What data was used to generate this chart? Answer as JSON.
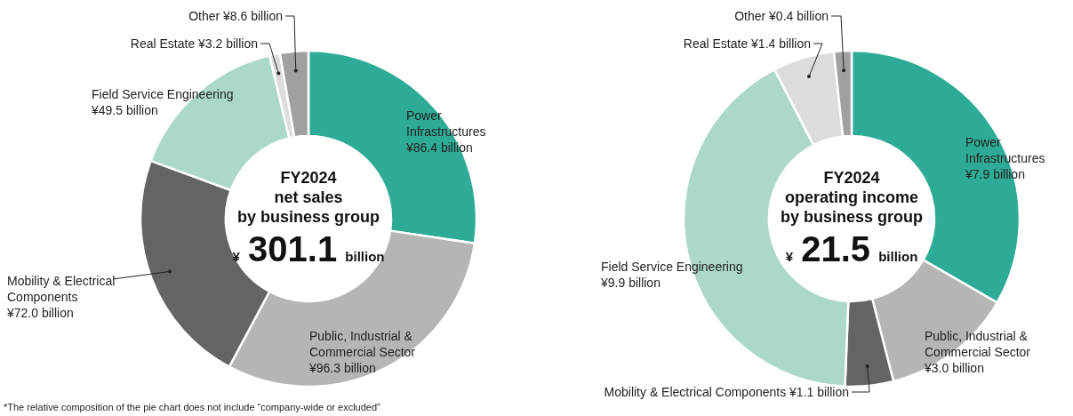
{
  "chart_data": [
    {
      "type": "donut",
      "title": "FY2024 net sales by business group",
      "subtitle": "¥ 301.1 billion",
      "categories": [
        "Power Infrastructures",
        "Public, Industrial & Commercial Sector",
        "Mobility & Electrical Components",
        "Field Service Engineering",
        "Real Estate",
        "Other"
      ],
      "values": [
        86.4,
        96.3,
        72.0,
        49.5,
        3.2,
        8.6
      ],
      "value_labels": [
        "¥86.4 billion",
        "¥96.3 billion",
        "¥72.0 billion",
        "¥49.5 billion",
        "¥3.2 billion",
        "¥8.6 billion"
      ],
      "colors": [
        "#2eab96",
        "#b5b5b4",
        "#646464",
        "#acd8cc",
        "#dcdcdc",
        "#a0a0a0"
      ],
      "legend": false,
      "annotations": [
        "*The relative composition of the pie chart does not include “company-wide or excluded”"
      ]
    },
    {
      "type": "donut",
      "title": "FY2024 operating income by business group",
      "subtitle": "¥ 21.5 billion",
      "categories": [
        "Power Infrastructures",
        "Public, Industrial & Commercial Sector",
        "Mobility & Electrical Components",
        "Field Service Engineering",
        "Real Estate",
        "Other"
      ],
      "values": [
        7.9,
        3.0,
        1.1,
        9.9,
        1.4,
        0.4
      ],
      "value_labels": [
        "¥7.9 billion",
        "¥3.0 billion",
        "¥1.1 billion",
        "¥9.9 billion",
        "¥1.4 billion",
        "¥0.4 billion"
      ],
      "colors": [
        "#2eab96",
        "#b5b5b4",
        "#646464",
        "#acd8cc",
        "#dcdcdc",
        "#a0a0a0"
      ],
      "legend": false
    }
  ]
}
